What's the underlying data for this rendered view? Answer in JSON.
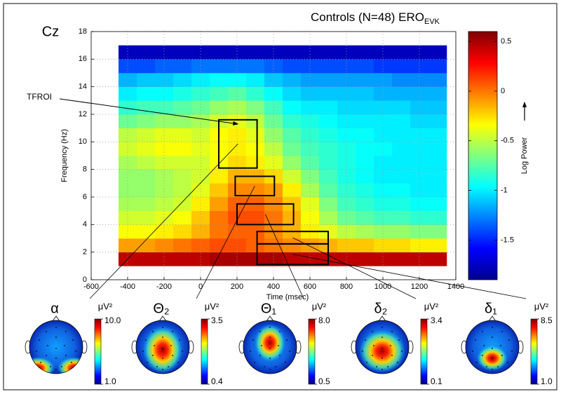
{
  "chart_data": {
    "type": "heatmap",
    "title": "Controls (N=48) ERO",
    "title_subscript": "EVK",
    "channel": "Cz",
    "annotation": "TFROI",
    "xlabel": "Time (msec)",
    "ylabel": "Frequency (Hz)",
    "x": [
      -400,
      -300,
      -200,
      -100,
      0,
      100,
      200,
      300,
      400,
      500,
      600,
      700,
      800,
      900,
      1000,
      1100,
      1200,
      1300
    ],
    "y": [
      1.5,
      2.5,
      3.5,
      4.5,
      5.5,
      6.5,
      7.5,
      8.5,
      9.5,
      10.5,
      11.5,
      12.5,
      13.5,
      14.5,
      15.5,
      16.5
    ],
    "z": [
      [
        0.45,
        0.45,
        0.45,
        0.45,
        0.45,
        0.5,
        0.5,
        0.5,
        0.5,
        0.45,
        0.45,
        0.45,
        0.45,
        0.45,
        0.45,
        0.45,
        0.45,
        0.45
      ],
      [
        -0.1,
        -0.1,
        -0.05,
        0,
        0.05,
        0.1,
        0.1,
        0.05,
        0,
        -0.05,
        -0.1,
        -0.15,
        -0.2,
        -0.2,
        -0.25,
        -0.25,
        -0.3,
        -0.3
      ],
      [
        -0.35,
        -0.35,
        -0.3,
        -0.25,
        -0.15,
        0,
        0.05,
        0.05,
        -0.05,
        -0.15,
        -0.3,
        -0.4,
        -0.5,
        -0.55,
        -0.6,
        -0.6,
        -0.65,
        -0.65
      ],
      [
        -0.45,
        -0.45,
        -0.4,
        -0.35,
        -0.2,
        0,
        0.1,
        0.1,
        0,
        -0.15,
        -0.35,
        -0.55,
        -0.7,
        -0.75,
        -0.8,
        -0.8,
        -0.85,
        -0.85
      ],
      [
        -0.55,
        -0.55,
        -0.5,
        -0.45,
        -0.3,
        -0.1,
        0.05,
        0.05,
        -0.05,
        -0.2,
        -0.4,
        -0.65,
        -0.8,
        -0.85,
        -0.9,
        -0.9,
        -0.95,
        -0.95
      ],
      [
        -0.6,
        -0.6,
        -0.55,
        -0.5,
        -0.4,
        -0.2,
        -0.05,
        -0.05,
        -0.1,
        -0.3,
        -0.55,
        -0.75,
        -0.85,
        -0.9,
        -0.95,
        -0.95,
        -1.0,
        -1.0
      ],
      [
        -0.6,
        -0.6,
        -0.55,
        -0.5,
        -0.45,
        -0.3,
        -0.15,
        -0.15,
        -0.25,
        -0.45,
        -0.65,
        -0.8,
        -0.9,
        -0.95,
        -1.0,
        -1.0,
        -1.0,
        -1.0
      ],
      [
        -0.55,
        -0.5,
        -0.45,
        -0.45,
        -0.45,
        -0.35,
        -0.25,
        -0.3,
        -0.4,
        -0.6,
        -0.75,
        -0.85,
        -0.9,
        -0.95,
        -1.0,
        -1.0,
        -1.0,
        -1.0
      ],
      [
        -0.45,
        -0.4,
        -0.35,
        -0.35,
        -0.4,
        -0.35,
        -0.3,
        -0.35,
        -0.5,
        -0.7,
        -0.8,
        -0.85,
        -0.9,
        -0.95,
        -0.95,
        -1.0,
        -1.0,
        -1.0
      ],
      [
        -0.5,
        -0.45,
        -0.4,
        -0.4,
        -0.45,
        -0.35,
        -0.3,
        -0.4,
        -0.6,
        -0.75,
        -0.85,
        -0.9,
        -0.95,
        -0.95,
        -1.0,
        -1.0,
        -1.0,
        -1.0
      ],
      [
        -0.7,
        -0.65,
        -0.6,
        -0.6,
        -0.55,
        -0.45,
        -0.4,
        -0.5,
        -0.7,
        -0.85,
        -0.9,
        -0.95,
        -1.0,
        -1.0,
        -1.0,
        -1.0,
        -1.05,
        -1.05
      ],
      [
        -0.85,
        -0.8,
        -0.8,
        -0.75,
        -0.7,
        -0.6,
        -0.55,
        -0.65,
        -0.8,
        -0.95,
        -1.0,
        -1.0,
        -1.05,
        -1.05,
        -1.05,
        -1.05,
        -1.1,
        -1.1
      ],
      [
        -1.0,
        -0.95,
        -0.95,
        -0.9,
        -0.85,
        -0.8,
        -0.75,
        -0.85,
        -0.95,
        -1.05,
        -1.1,
        -1.1,
        -1.1,
        -1.1,
        -1.15,
        -1.15,
        -1.15,
        -1.15
      ],
      [
        -1.15,
        -1.1,
        -1.1,
        -1.05,
        -1.0,
        -0.95,
        -0.95,
        -1.0,
        -1.1,
        -1.15,
        -1.2,
        -1.2,
        -1.2,
        -1.2,
        -1.2,
        -1.25,
        -1.25,
        -1.25
      ],
      [
        -1.4,
        -1.4,
        -1.35,
        -1.35,
        -1.3,
        -1.3,
        -1.3,
        -1.3,
        -1.35,
        -1.4,
        -1.4,
        -1.4,
        -1.4,
        -1.4,
        -1.45,
        -1.45,
        -1.45,
        -1.45
      ],
      [
        -1.75,
        -1.75,
        -1.75,
        -1.75,
        -1.75,
        -1.75,
        -1.75,
        -1.75,
        -1.75,
        -1.75,
        -1.75,
        -1.75,
        -1.75,
        -1.75,
        -1.75,
        -1.75,
        -1.75,
        -1.75
      ]
    ],
    "xlim": [
      -600,
      1400
    ],
    "ylim": [
      0,
      18
    ],
    "xticks": [
      -600,
      -400,
      -200,
      0,
      200,
      400,
      600,
      800,
      1000,
      1200,
      1400
    ],
    "yticks": [
      0,
      2,
      4,
      6,
      8,
      10,
      12,
      14,
      16,
      18
    ],
    "grid": true,
    "colormap": "jet",
    "clim": [
      -1.9,
      0.6
    ],
    "colorbar_label": "Log Power",
    "colorbar_ticks": [
      -1.5,
      -1,
      -0.5,
      0,
      0.5
    ],
    "rois": [
      {
        "label": "α",
        "unit": "μV²",
        "t": [
          100,
          310
        ],
        "f": [
          8.1,
          11.6
        ],
        "scale_ticks": [
          {
            "value": 1,
            "label": "1.0"
          },
          {
            "value": 10,
            "label": "10.0"
          }
        ]
      },
      {
        "label": "Θ₂",
        "unit": "μV²",
        "t": [
          190,
          405
        ],
        "f": [
          6.1,
          7.5
        ],
        "scale_ticks": [
          0.4,
          3.5
        ]
      },
      {
        "label": "Θ₁",
        "unit": "μV²",
        "t": [
          200,
          510
        ],
        "f": [
          4.0,
          5.5
        ],
        "scale_ticks": [
          0.5,
          {
            "value": 8,
            "label": "8.0"
          }
        ]
      },
      {
        "label": "δ₂",
        "unit": "μV²",
        "t": [
          310,
          700
        ],
        "f": [
          2.6,
          3.5
        ],
        "scale_ticks": [
          0.1,
          3.4
        ]
      },
      {
        "label": "δ₁",
        "unit": "μV²",
        "t": [
          310,
          700
        ],
        "f": [
          1.1,
          2.6
        ],
        "scale_ticks": [
          {
            "value": 1,
            "label": "1.0"
          },
          8.5
        ]
      }
    ]
  }
}
